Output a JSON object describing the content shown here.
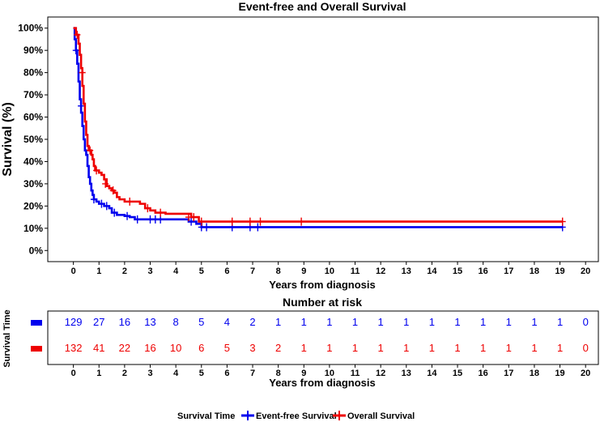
{
  "chart_data": {
    "type": "line",
    "subtype": "kaplan-meier",
    "title": "Event-free and Overall Survival",
    "xlabel": "Years from diagnosis",
    "ylabel": "Survival (%)",
    "xlim": [
      -1,
      20.5
    ],
    "ylim": [
      -0.05,
      1.05
    ],
    "xticks": [
      0,
      1,
      2,
      3,
      4,
      5,
      6,
      7,
      8,
      9,
      10,
      11,
      12,
      13,
      14,
      15,
      16,
      17,
      18,
      19,
      20
    ],
    "yticks": [
      0,
      0.1,
      0.2,
      0.3,
      0.4,
      0.5,
      0.6,
      0.7,
      0.8,
      0.9,
      1.0
    ],
    "ytick_labels": [
      "0%",
      "10%",
      "20%",
      "30%",
      "40%",
      "50%",
      "60%",
      "70%",
      "80%",
      "90%",
      "100%"
    ],
    "grid": false,
    "legend_title": "Survival Time",
    "legend_position": "bottom",
    "series": [
      {
        "name": "Event-free Survival",
        "color": "#0000ee",
        "steps": [
          [
            0,
            1.0
          ],
          [
            0.05,
            0.95
          ],
          [
            0.1,
            0.9
          ],
          [
            0.15,
            0.84
          ],
          [
            0.2,
            0.76
          ],
          [
            0.25,
            0.68
          ],
          [
            0.3,
            0.62
          ],
          [
            0.35,
            0.56
          ],
          [
            0.4,
            0.5
          ],
          [
            0.45,
            0.45
          ],
          [
            0.5,
            0.43
          ],
          [
            0.55,
            0.38
          ],
          [
            0.6,
            0.33
          ],
          [
            0.65,
            0.3
          ],
          [
            0.7,
            0.27
          ],
          [
            0.75,
            0.25
          ],
          [
            0.8,
            0.23
          ],
          [
            0.9,
            0.22
          ],
          [
            1.0,
            0.21
          ],
          [
            1.2,
            0.2
          ],
          [
            1.4,
            0.19
          ],
          [
            1.5,
            0.17
          ],
          [
            1.7,
            0.16
          ],
          [
            2.0,
            0.155
          ],
          [
            2.2,
            0.15
          ],
          [
            2.4,
            0.14
          ],
          [
            4.5,
            0.13
          ],
          [
            4.8,
            0.12
          ],
          [
            5.0,
            0.105
          ],
          [
            19.1,
            0.105
          ]
        ],
        "censored": [
          [
            0.1,
            0.9
          ],
          [
            0.3,
            0.65
          ],
          [
            0.8,
            0.23
          ],
          [
            1.1,
            0.21
          ],
          [
            1.3,
            0.2
          ],
          [
            1.6,
            0.17
          ],
          [
            2.1,
            0.155
          ],
          [
            2.5,
            0.14
          ],
          [
            3.0,
            0.14
          ],
          [
            3.2,
            0.14
          ],
          [
            3.4,
            0.14
          ],
          [
            4.6,
            0.13
          ],
          [
            5.0,
            0.105
          ],
          [
            5.2,
            0.105
          ],
          [
            6.2,
            0.105
          ],
          [
            6.9,
            0.105
          ],
          [
            7.2,
            0.105
          ],
          [
            19.1,
            0.105
          ]
        ]
      },
      {
        "name": "Overall Survival",
        "color": "#ee0000",
        "steps": [
          [
            0,
            1.0
          ],
          [
            0.1,
            0.97
          ],
          [
            0.2,
            0.93
          ],
          [
            0.25,
            0.88
          ],
          [
            0.3,
            0.82
          ],
          [
            0.35,
            0.74
          ],
          [
            0.4,
            0.66
          ],
          [
            0.45,
            0.58
          ],
          [
            0.5,
            0.52
          ],
          [
            0.55,
            0.47
          ],
          [
            0.6,
            0.45
          ],
          [
            0.7,
            0.43
          ],
          [
            0.75,
            0.41
          ],
          [
            0.8,
            0.38
          ],
          [
            0.85,
            0.36
          ],
          [
            1.0,
            0.35
          ],
          [
            1.1,
            0.34
          ],
          [
            1.2,
            0.32
          ],
          [
            1.3,
            0.29
          ],
          [
            1.4,
            0.28
          ],
          [
            1.5,
            0.27
          ],
          [
            1.6,
            0.26
          ],
          [
            1.7,
            0.24
          ],
          [
            1.8,
            0.23
          ],
          [
            2.0,
            0.22
          ],
          [
            2.6,
            0.21
          ],
          [
            2.8,
            0.19
          ],
          [
            3.0,
            0.18
          ],
          [
            3.2,
            0.17
          ],
          [
            3.6,
            0.165
          ],
          [
            4.6,
            0.15
          ],
          [
            4.9,
            0.13
          ],
          [
            19.1,
            0.13
          ]
        ],
        "censored": [
          [
            0.15,
            0.97
          ],
          [
            0.35,
            0.8
          ],
          [
            0.65,
            0.45
          ],
          [
            0.9,
            0.36
          ],
          [
            1.25,
            0.3
          ],
          [
            1.55,
            0.27
          ],
          [
            2.2,
            0.22
          ],
          [
            2.9,
            0.19
          ],
          [
            3.4,
            0.17
          ],
          [
            4.5,
            0.15
          ],
          [
            4.7,
            0.15
          ],
          [
            5.0,
            0.13
          ],
          [
            6.2,
            0.13
          ],
          [
            6.9,
            0.13
          ],
          [
            7.3,
            0.13
          ],
          [
            8.9,
            0.13
          ],
          [
            19.1,
            0.13
          ]
        ]
      }
    ]
  },
  "risk_table": {
    "title": "Number at risk",
    "ylabel": "Survival Time",
    "xlabel": "Years from diagnosis",
    "times": [
      0,
      1,
      2,
      3,
      4,
      5,
      6,
      7,
      8,
      9,
      10,
      11,
      12,
      13,
      14,
      15,
      16,
      17,
      18,
      19,
      20
    ],
    "rows": [
      {
        "color": "#0000ee",
        "values": [
          129,
          27,
          16,
          13,
          8,
          5,
          4,
          2,
          1,
          1,
          1,
          1,
          1,
          1,
          1,
          1,
          1,
          1,
          1,
          1,
          0
        ]
      },
      {
        "color": "#ee0000",
        "values": [
          132,
          41,
          22,
          16,
          10,
          6,
          5,
          3,
          2,
          1,
          1,
          1,
          1,
          1,
          1,
          1,
          1,
          1,
          1,
          1,
          0
        ]
      }
    ]
  }
}
